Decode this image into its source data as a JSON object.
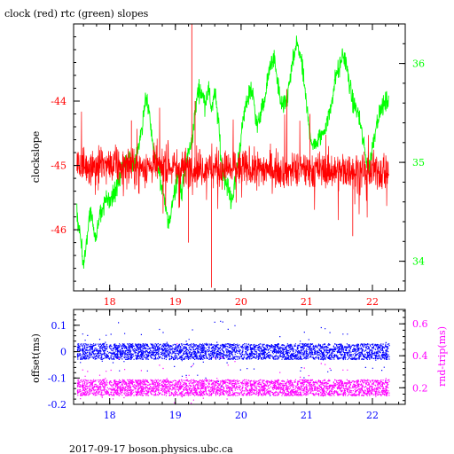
{
  "colors": {
    "clock": "#ff0000",
    "rtc": "#00ff00",
    "offset": "#0000ff",
    "rndtrip": "#ff00ff",
    "axis": "#000000",
    "background": "#ffffff"
  },
  "chart_data": [
    {
      "type": "line",
      "title": "clock (red) rtc (green) slopes",
      "ylabel": "clockslope",
      "x_range": [
        17.45,
        22.5
      ],
      "x_ticks": [
        18,
        19,
        20,
        21,
        22
      ],
      "x_tick_labels": [
        "18",
        "19",
        "20",
        "21",
        "22"
      ],
      "ylim": [
        -46.95,
        -42.8
      ],
      "y_ticks": [
        -44,
        -45,
        -46
      ],
      "y_tick_labels": [
        "-44",
        "-45",
        "-46"
      ],
      "y2lim": [
        33.7,
        36.4
      ],
      "y2_ticks": [
        34,
        35,
        36
      ],
      "y2_tick_labels": [
        "34",
        "35",
        "36"
      ],
      "grid": false,
      "series": [
        {
          "axis": "right",
          "color": "#00ff00",
          "x": [
            17.5,
            17.55,
            17.6,
            17.65,
            17.7,
            17.75,
            17.8,
            17.85,
            17.9,
            17.95,
            18.0,
            18.05,
            18.1,
            18.15,
            18.2,
            18.25,
            18.3,
            18.35,
            18.4,
            18.45,
            18.5,
            18.55,
            18.6,
            18.65,
            18.7,
            18.75,
            18.8,
            18.85,
            18.9,
            18.95,
            19.0,
            19.05,
            19.1,
            19.15,
            19.2,
            19.25,
            19.3,
            19.35,
            19.4,
            19.45,
            19.5,
            19.55,
            19.6,
            19.65,
            19.7,
            19.75,
            19.8,
            19.85,
            19.9,
            19.95,
            20.0,
            20.05,
            20.1,
            20.15,
            20.2,
            20.25,
            20.3,
            20.35,
            20.4,
            20.45,
            20.5,
            20.55,
            20.6,
            20.65,
            20.7,
            20.75,
            20.8,
            20.85,
            20.9,
            20.95,
            21.0,
            21.05,
            21.1,
            21.15,
            21.2,
            21.25,
            21.3,
            21.35,
            21.4,
            21.45,
            21.5,
            21.55,
            21.6,
            21.65,
            21.7,
            21.75,
            21.8,
            21.85,
            21.9,
            21.95,
            22.0,
            22.05,
            22.1,
            22.15,
            22.2,
            22.25
          ],
          "values": [
            34.5,
            34.25,
            33.95,
            34.2,
            34.5,
            34.35,
            34.2,
            34.5,
            34.55,
            34.65,
            34.6,
            34.65,
            34.75,
            34.85,
            34.95,
            35.0,
            35.05,
            34.95,
            35.05,
            35.2,
            35.4,
            35.7,
            35.5,
            35.2,
            35.05,
            34.9,
            34.7,
            34.55,
            34.35,
            34.6,
            34.75,
            34.9,
            34.7,
            34.95,
            35.1,
            35.2,
            35.5,
            35.75,
            35.7,
            35.6,
            35.75,
            35.55,
            35.7,
            35.45,
            35.0,
            34.85,
            34.75,
            34.6,
            34.75,
            35.0,
            35.25,
            35.5,
            35.65,
            35.75,
            35.6,
            35.35,
            35.5,
            35.6,
            35.8,
            36.0,
            36.05,
            35.85,
            35.6,
            35.55,
            35.65,
            35.85,
            36.05,
            36.2,
            36.1,
            35.85,
            35.55,
            35.3,
            35.15,
            35.2,
            35.25,
            35.3,
            35.4,
            35.5,
            35.7,
            35.9,
            35.95,
            36.1,
            36.0,
            35.8,
            35.6,
            35.55,
            35.45,
            35.25,
            35.05,
            34.95,
            35.15,
            35.35,
            35.5,
            35.55,
            35.6,
            35.65
          ]
        },
        {
          "axis": "left",
          "color": "#ff0000",
          "x": [
            17.5,
            22.25
          ],
          "values": [
            -45.0,
            -45.1
          ],
          "noise": "high-frequency scatter about -45.0; visible excursions from about -42.8 to -46.9 (largest near x=19.25 and x=19.55)"
        }
      ]
    },
    {
      "type": "scatter",
      "ylabel": "offset(ms)",
      "y2label": "rnd-trip(ms)",
      "x_range": [
        17.45,
        22.5
      ],
      "x_ticks": [
        18,
        19,
        20,
        21,
        22
      ],
      "x_tick_labels": [
        "18",
        "19",
        "20",
        "21",
        "22"
      ],
      "ylim": [
        -0.2,
        0.16
      ],
      "y_ticks": [
        0.1,
        0,
        -0.1,
        -0.2
      ],
      "y_tick_labels": [
        "0.1",
        "0",
        "-0.1",
        "-0.2"
      ],
      "y2lim": [
        0.096,
        0.69
      ],
      "y2_ticks": [
        0.6,
        0.4,
        0.2
      ],
      "y2_tick_labels": [
        "0.6",
        "0.4",
        "0.2"
      ],
      "grid": false,
      "series": [
        {
          "axis": "left",
          "color": "#0000ff",
          "x_range": [
            17.5,
            22.25
          ],
          "center": 0.0,
          "band": [
            -0.03,
            0.03
          ]
        },
        {
          "axis": "right",
          "color": "#ff00ff",
          "x_range": [
            17.5,
            22.25
          ],
          "center": 0.2,
          "band": [
            0.15,
            0.25
          ]
        }
      ]
    }
  ],
  "footer": "2017-09-17 boson.physics.ubc.ca"
}
